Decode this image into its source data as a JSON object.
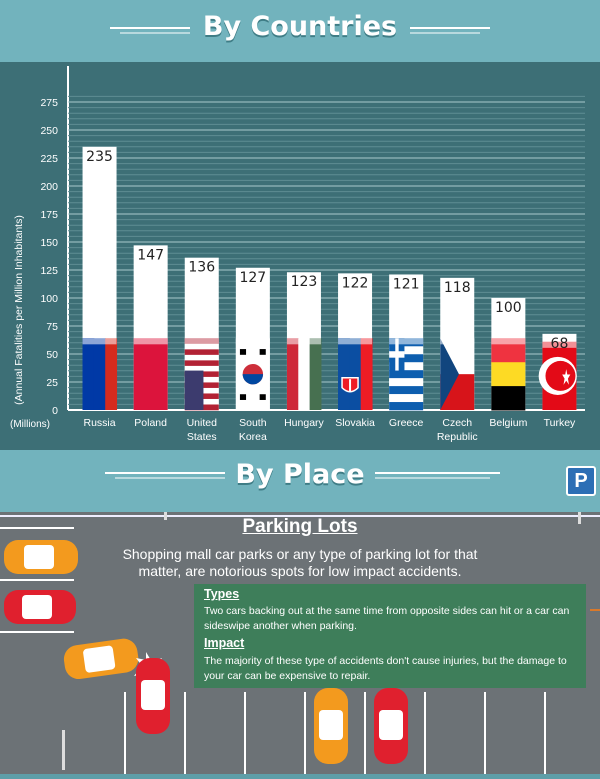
{
  "sections": {
    "countries_heading": "By Countries",
    "place_heading": "By Place"
  },
  "chart_data": {
    "type": "bar",
    "ylabel": "(Annual Fatalities per Million Inhabitants)",
    "x_unit_label": "(Millions)",
    "ylim": [
      0,
      275
    ],
    "yticks": [
      0,
      25,
      50,
      75,
      100,
      125,
      150,
      175,
      200,
      225,
      250,
      275
    ],
    "grid": true,
    "categories": [
      [
        "Russia"
      ],
      [
        "Poland"
      ],
      [
        "United",
        "States"
      ],
      [
        "South",
        "Korea"
      ],
      [
        "Hungary"
      ],
      [
        "Slovakia"
      ],
      [
        "Greece"
      ],
      [
        "Czech",
        "Republic"
      ],
      [
        "Belgium"
      ],
      [
        "Turkey"
      ]
    ],
    "values": [
      235,
      147,
      136,
      127,
      123,
      122,
      121,
      118,
      100,
      68
    ],
    "flags": [
      "russia",
      "poland",
      "usa",
      "south-korea",
      "hungary",
      "slovakia",
      "greece",
      "czech",
      "belgium",
      "turkey"
    ]
  },
  "parking": {
    "title": "Parking Lots",
    "description": "Shopping mall car parks or any type of parking lot for that matter, are notorious spots for low impact accidents.",
    "types_title": "Types",
    "types_text": "Two cars backing out at the same time from opposite sides can hit or a car can sideswipe another when parking.",
    "impact_title": "Impact",
    "impact_text": "The majority of these type of accidents don't cause injuries, but the damage to your car can be expensive to repair.",
    "sign_label": "P"
  },
  "colors": {
    "header": "#72b3bd",
    "chart_bg": "#3d6f76",
    "asphalt": "#6c7276",
    "info_box": "#3e7e5a",
    "car_orange": "#f39a1e",
    "car_red": "#e0202e"
  }
}
